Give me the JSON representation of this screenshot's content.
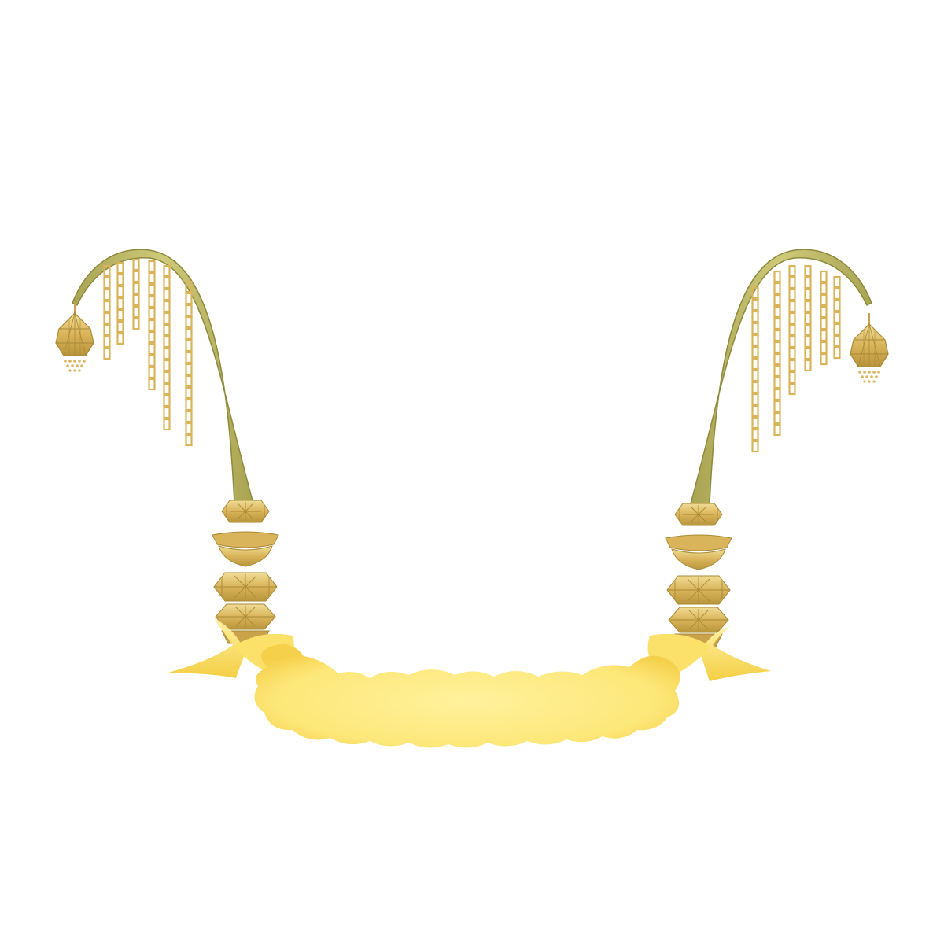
{
  "scene": {
    "subject": "penjor-banner-frame",
    "background_color": "#ffffff",
    "pole_color": "#bdb866",
    "pole_edge_color": "#8e8a3e",
    "gold_color": "#d9b45a",
    "gold_dark_color": "#a98a35",
    "gold_light_color": "#f1dc95",
    "banner_color": "#fdec8f",
    "banner_edge_color": "#f7d450",
    "ribbon_color": "#fbe06a"
  }
}
